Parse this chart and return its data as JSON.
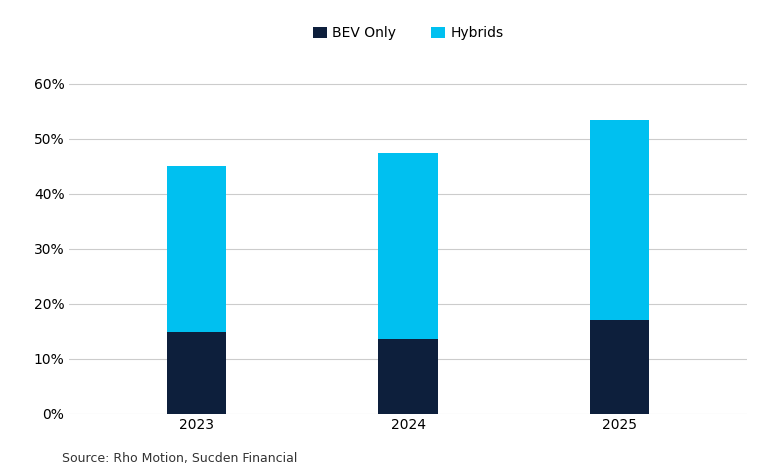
{
  "years": [
    "2023",
    "2024",
    "2025"
  ],
  "bev_values": [
    14.8,
    13.5,
    17.0
  ],
  "hybrid_values": [
    30.2,
    34.0,
    36.5
  ],
  "bev_color": "#0d1f3c",
  "hybrid_color": "#00c0f0",
  "ylim": [
    0,
    65
  ],
  "yticks": [
    0,
    10,
    20,
    30,
    40,
    50,
    60
  ],
  "legend_labels": [
    "BEV Only",
    "Hybrids"
  ],
  "source_text": "Source: Rho Motion, Sucden Financial",
  "bar_width": 0.28,
  "background_color": "#ffffff",
  "grid_color": "#cccccc",
  "tick_fontsize": 10,
  "source_fontsize": 9
}
